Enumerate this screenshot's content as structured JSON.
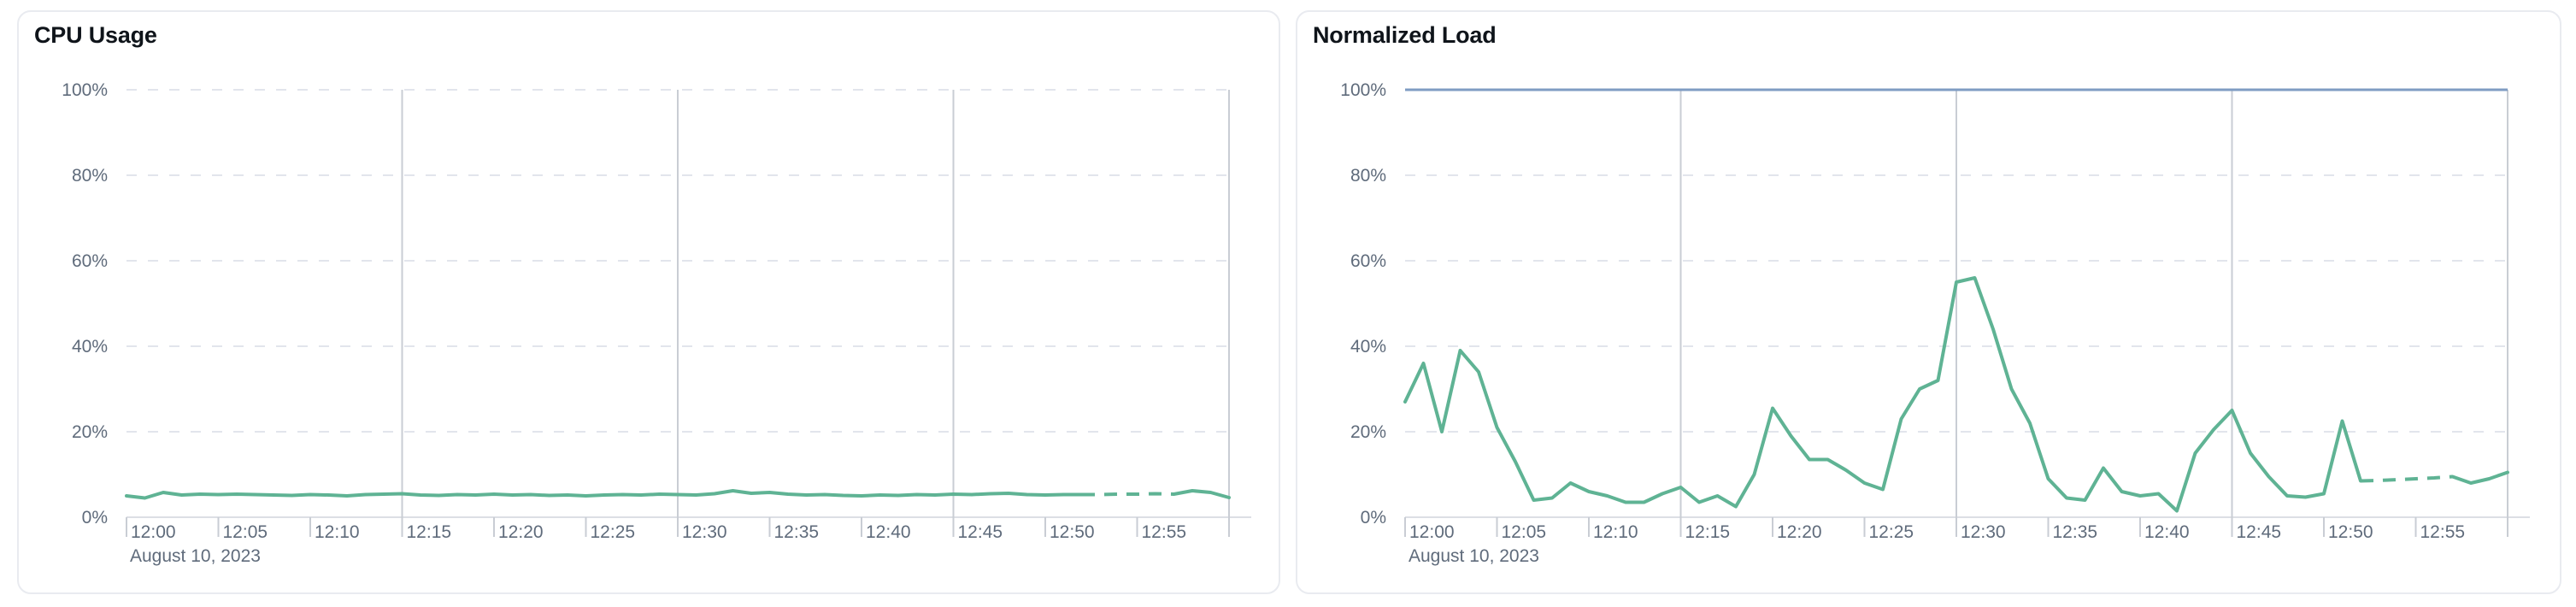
{
  "chart_data": [
    {
      "type": "line",
      "title": "CPU Usage",
      "legend": "none",
      "grid": true,
      "x_axis": {
        "tick_labels": [
          "12:00",
          "12:05",
          "12:10",
          "12:15",
          "12:20",
          "12:25",
          "12:30",
          "12:35",
          "12:40",
          "12:45",
          "12:50",
          "12:55"
        ],
        "tick_interval_minutes": 5,
        "date_label": "August 10, 2023",
        "range_minutes": [
          0,
          60
        ],
        "major_gridline_minutes": [
          15,
          30,
          45,
          60
        ]
      },
      "y_axis": {
        "tick_labels": [
          "0%",
          "20%",
          "40%",
          "60%",
          "80%",
          "100%"
        ],
        "lim": [
          0,
          100
        ]
      },
      "series": [
        {
          "name": "cpu-usage",
          "color": "#5fb394",
          "x_start_minute": 0,
          "step_minutes": 1,
          "dash_start_minute": 52,
          "dash_end_minute": 57,
          "values": [
            5,
            4.5,
            5.8,
            5.2,
            5.4,
            5.3,
            5.4,
            5.3,
            5.2,
            5.1,
            5.3,
            5.2,
            5,
            5.3,
            5.4,
            5.5,
            5.2,
            5.1,
            5.3,
            5.2,
            5.4,
            5.2,
            5.3,
            5.1,
            5.2,
            5,
            5.2,
            5.3,
            5.2,
            5.4,
            5.3,
            5.2,
            5.5,
            6.2,
            5.6,
            5.8,
            5.4,
            5.2,
            5.3,
            5.1,
            5,
            5.2,
            5.1,
            5.3,
            5.2,
            5.4,
            5.3,
            5.5,
            5.6,
            5.3,
            5.2,
            5.3,
            5.3,
            5.3,
            5.4,
            5.4,
            5.5,
            5.4,
            6.2,
            5.8,
            4.6
          ]
        }
      ]
    },
    {
      "type": "line",
      "title": "Normalized Load",
      "legend": "none",
      "grid": true,
      "x_axis": {
        "tick_labels": [
          "12:00",
          "12:05",
          "12:10",
          "12:15",
          "12:20",
          "12:25",
          "12:30",
          "12:35",
          "12:40",
          "12:45",
          "12:50",
          "12:55"
        ],
        "tick_interval_minutes": 5,
        "date_label": "August 10, 2023",
        "range_minutes": [
          0,
          60
        ],
        "major_gridline_minutes": [
          15,
          30,
          45,
          60
        ]
      },
      "y_axis": {
        "tick_labels": [
          "0%",
          "20%",
          "40%",
          "60%",
          "80%",
          "100%"
        ],
        "lim": [
          0,
          100
        ]
      },
      "series": [
        {
          "name": "normalized-load",
          "color": "#5fb394",
          "x_start_minute": 0,
          "step_minutes": 1,
          "dash_start_minute": 52,
          "dash_end_minute": 57,
          "values": [
            27,
            36,
            20,
            39,
            34,
            21,
            13,
            4,
            4.5,
            8,
            6,
            5,
            3.5,
            3.5,
            5.5,
            7,
            3.5,
            5,
            2.5,
            10,
            25.5,
            19,
            13.5,
            13.5,
            11,
            8,
            6.5,
            23,
            30,
            32,
            55,
            56,
            44,
            30,
            22,
            9,
            4.5,
            4,
            11.5,
            6,
            5,
            5.5,
            1.5,
            15,
            20.5,
            25,
            15,
            9.5,
            5,
            4.7,
            5.5,
            22.5,
            8.5,
            8.6,
            8.8,
            9,
            9.2,
            9.5,
            8,
            9,
            10.5
          ]
        },
        {
          "name": "limit",
          "color": "#7f9cc3",
          "constant_value": 100
        }
      ]
    }
  ]
}
